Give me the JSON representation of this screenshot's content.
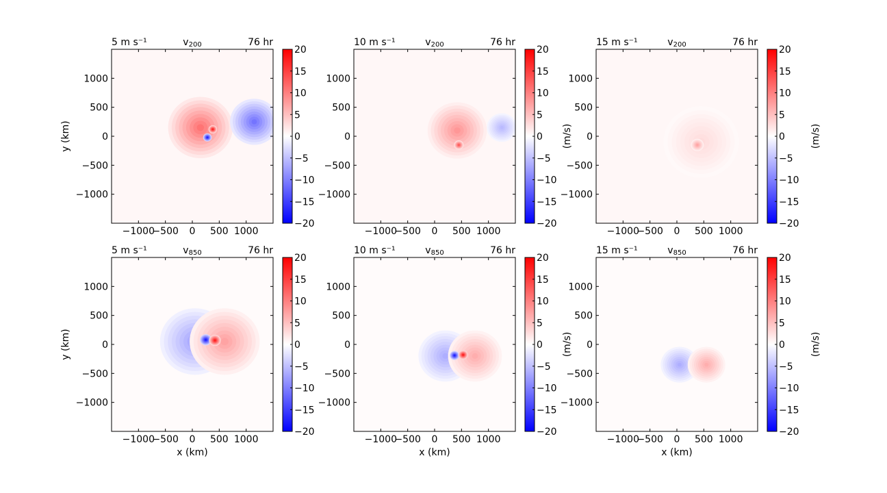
{
  "figure": {
    "panels": [
      {
        "row": 0,
        "col": 0,
        "left_title": "5 m s⁻¹",
        "center_title": "v",
        "center_sub": "200",
        "right_title": "76 hr"
      },
      {
        "row": 0,
        "col": 1,
        "left_title": "10 m s⁻¹",
        "center_title": "v",
        "center_sub": "200",
        "right_title": "76 hr"
      },
      {
        "row": 0,
        "col": 2,
        "left_title": "15 m s⁻¹",
        "center_title": "v",
        "center_sub": "200",
        "right_title": "76 hr"
      },
      {
        "row": 1,
        "col": 0,
        "left_title": "5 m s⁻¹",
        "center_title": "v",
        "center_sub": "850",
        "right_title": "76 hr"
      },
      {
        "row": 1,
        "col": 1,
        "left_title": "10 m s⁻¹",
        "center_title": "v",
        "center_sub": "850",
        "right_title": "76 hr"
      },
      {
        "row": 1,
        "col": 2,
        "left_title": "15 m s⁻¹",
        "center_title": "v",
        "center_sub": "850",
        "right_title": "76 hr"
      }
    ],
    "xlabel": "x (km)",
    "ylabel": "y (km)",
    "colorbar_label": "(m/s)",
    "x_ticks": [
      -1000,
      -500,
      0,
      500,
      1000
    ],
    "x_tick_labels": [
      "−1000",
      "−500",
      "0",
      "500",
      "1000"
    ],
    "y_ticks": [
      1000,
      500,
      0,
      -500,
      -1000
    ],
    "y_tick_labels": [
      "1000",
      "500",
      "0",
      "−500",
      "−1000"
    ],
    "colorbar_ticks": [
      20,
      15,
      10,
      5,
      0,
      -5,
      -10,
      -15,
      -20
    ],
    "colorbar_tick_labels": [
      "20",
      "15",
      "10",
      "5",
      "0",
      "−5",
      "−10",
      "−15",
      "−20"
    ],
    "colormap": {
      "min_color": "#0000ff",
      "mid_color": "#ffffff",
      "max_color": "#ff0000"
    }
  },
  "chart_data": {
    "type": "heatmap",
    "title": "",
    "xlabel": "x (km)",
    "ylabel": "y (km)",
    "xlim": [
      -1500,
      1500
    ],
    "ylim": [
      -1500,
      1500
    ],
    "colorbar_range": [
      -20,
      20
    ],
    "colorbar_units": "(m/s)",
    "panels": [
      {
        "level": "v200",
        "shear": "5 m s⁻¹",
        "time": "76 hr",
        "features": [
          {
            "sign": "positive",
            "center_km": [
              150,
              150
            ],
            "peak_ms": 12,
            "radius_km": 600
          },
          {
            "sign": "negative",
            "center_km": [
              1150,
              250
            ],
            "peak_ms": -12,
            "radius_km": 450
          },
          {
            "sign": "positive",
            "center_km": [
              380,
              120
            ],
            "peak_ms": 20,
            "radius_km": 80
          },
          {
            "sign": "negative",
            "center_km": [
              280,
              -20
            ],
            "peak_ms": -20,
            "radius_km": 80
          }
        ]
      },
      {
        "level": "v200",
        "shear": "10 m s⁻¹",
        "time": "76 hr",
        "features": [
          {
            "sign": "positive",
            "center_km": [
              420,
              100
            ],
            "peak_ms": 9,
            "radius_km": 550
          },
          {
            "sign": "negative",
            "center_km": [
              1250,
              150
            ],
            "peak_ms": -6,
            "radius_km": 280
          },
          {
            "sign": "positive",
            "center_km": [
              450,
              -150
            ],
            "peak_ms": 15,
            "radius_km": 90
          }
        ]
      },
      {
        "level": "v200",
        "shear": "15 m s⁻¹",
        "time": "76 hr",
        "features": [
          {
            "sign": "positive",
            "center_km": [
              450,
              -100
            ],
            "peak_ms": 3,
            "radius_km": 700
          },
          {
            "sign": "positive",
            "center_km": [
              380,
              -150
            ],
            "peak_ms": 8,
            "radius_km": 120
          }
        ]
      },
      {
        "level": "v850",
        "shear": "5 m s⁻¹",
        "time": "76 hr",
        "features": [
          {
            "sign": "negative",
            "center_km": [
              50,
              50
            ],
            "peak_ms": -8,
            "radius_km": 650
          },
          {
            "sign": "positive",
            "center_km": [
              600,
              50
            ],
            "peak_ms": 8,
            "radius_km": 650
          },
          {
            "sign": "negative",
            "center_km": [
              250,
              80
            ],
            "peak_ms": -20,
            "radius_km": 110
          },
          {
            "sign": "positive",
            "center_km": [
              420,
              70
            ],
            "peak_ms": 20,
            "radius_km": 110
          }
        ]
      },
      {
        "level": "v850",
        "shear": "10 m s⁻¹",
        "time": "76 hr",
        "features": [
          {
            "sign": "negative",
            "center_km": [
              200,
              -200
            ],
            "peak_ms": -7,
            "radius_km": 500
          },
          {
            "sign": "positive",
            "center_km": [
              750,
              -200
            ],
            "peak_ms": 7,
            "radius_km": 500
          },
          {
            "sign": "negative",
            "center_km": [
              370,
              -190
            ],
            "peak_ms": -20,
            "radius_km": 90
          },
          {
            "sign": "positive",
            "center_km": [
              530,
              -180
            ],
            "peak_ms": 20,
            "radius_km": 90
          }
        ]
      },
      {
        "level": "v850",
        "shear": "15 m s⁻¹",
        "time": "76 hr",
        "features": [
          {
            "sign": "negative",
            "center_km": [
              50,
              -350
            ],
            "peak_ms": -7,
            "radius_km": 350
          },
          {
            "sign": "positive",
            "center_km": [
              550,
              -350
            ],
            "peak_ms": 7,
            "radius_km": 350
          }
        ]
      }
    ]
  }
}
